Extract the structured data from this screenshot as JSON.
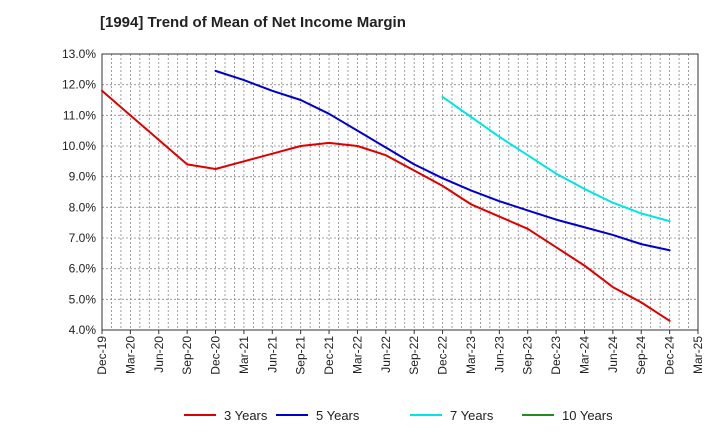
{
  "chart_data": {
    "type": "line",
    "title": "[1994]  Trend of Mean of Net Income Margin",
    "xlabel": "",
    "ylabel": "",
    "ylim": [
      4.0,
      13.0
    ],
    "y_ticks": [
      "4.0%",
      "5.0%",
      "6.0%",
      "7.0%",
      "8.0%",
      "9.0%",
      "10.0%",
      "11.0%",
      "12.0%",
      "13.0%"
    ],
    "x_ticks": [
      "Dec-19",
      "Mar-20",
      "Jun-20",
      "Sep-20",
      "Dec-20",
      "Mar-21",
      "Jun-21",
      "Sep-21",
      "Dec-21",
      "Mar-22",
      "Jun-22",
      "Sep-22",
      "Dec-22",
      "Mar-23",
      "Jun-23",
      "Sep-23",
      "Dec-23",
      "Mar-24",
      "Jun-24",
      "Sep-24",
      "Dec-24",
      "Mar-25"
    ],
    "grid": true,
    "legend_position": "bottom",
    "series": [
      {
        "name": "3 Years",
        "color": "#dd0000",
        "values": [
          11.8,
          11.0,
          10.2,
          9.4,
          9.25,
          9.5,
          9.75,
          10.0,
          10.1,
          10.0,
          9.7,
          9.2,
          8.7,
          8.1,
          7.7,
          7.3,
          6.7,
          6.1,
          5.4,
          4.9,
          4.3,
          null
        ]
      },
      {
        "name": "5 Years",
        "color": "#0000cc",
        "values": [
          null,
          null,
          null,
          null,
          12.45,
          12.15,
          11.8,
          11.5,
          11.05,
          10.5,
          9.95,
          9.4,
          8.95,
          8.55,
          8.2,
          7.9,
          7.6,
          7.35,
          7.1,
          6.8,
          6.6,
          null
        ]
      },
      {
        "name": "7 Years",
        "color": "#00e5e5",
        "values": [
          null,
          null,
          null,
          null,
          null,
          null,
          null,
          null,
          null,
          null,
          null,
          null,
          11.6,
          10.95,
          10.3,
          9.7,
          9.1,
          8.6,
          8.15,
          7.8,
          7.55,
          null
        ]
      },
      {
        "name": "10 Years",
        "color": "#228b22",
        "values": [
          null,
          null,
          null,
          null,
          null,
          null,
          null,
          null,
          null,
          null,
          null,
          null,
          null,
          null,
          null,
          null,
          null,
          null,
          null,
          null,
          null,
          null
        ]
      }
    ]
  }
}
